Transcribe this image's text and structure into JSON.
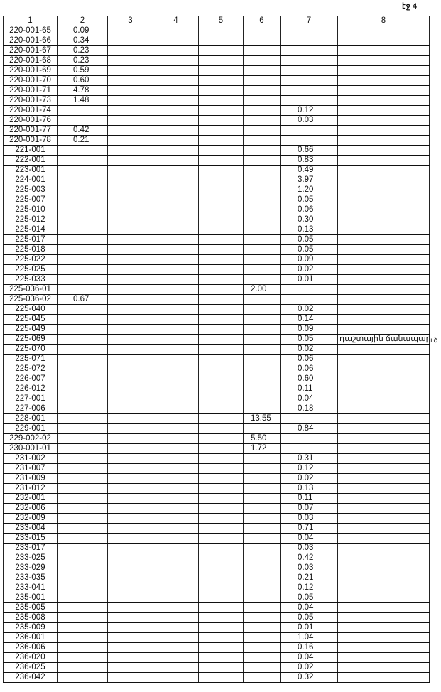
{
  "page_label": "էջ 4",
  "side_mark": "ւծ",
  "headers": [
    "1",
    "2",
    "3",
    "4",
    "5",
    "6",
    "7",
    "8"
  ],
  "rows": [
    [
      "220-001-65",
      "0.09",
      "",
      "",
      "",
      "",
      "",
      ""
    ],
    [
      "220-001-66",
      "0.34",
      "",
      "",
      "",
      "",
      "",
      ""
    ],
    [
      "220-001-67",
      "0.23",
      "",
      "",
      "",
      "",
      "",
      ""
    ],
    [
      "220-001-68",
      "0.23",
      "",
      "",
      "",
      "",
      "",
      ""
    ],
    [
      "220-001-69",
      "0.59",
      "",
      "",
      "",
      "",
      "",
      ""
    ],
    [
      "220-001-70",
      "0.60",
      "",
      "",
      "",
      "",
      "",
      ""
    ],
    [
      "220-001-71",
      "4.78",
      "",
      "",
      "",
      "",
      "",
      ""
    ],
    [
      "220-001-73",
      "1.48",
      "",
      "",
      "",
      "",
      "",
      ""
    ],
    [
      "220-001-74",
      "",
      "",
      "",
      "",
      "",
      "0.12",
      ""
    ],
    [
      "220-001-76",
      "",
      "",
      "",
      "",
      "",
      "0.03",
      ""
    ],
    [
      "220-001-77",
      "0.42",
      "",
      "",
      "",
      "",
      "",
      ""
    ],
    [
      "220-001-78",
      "0.21",
      "",
      "",
      "",
      "",
      "",
      ""
    ],
    [
      "221-001",
      "",
      "",
      "",
      "",
      "",
      "0.66",
      ""
    ],
    [
      "222-001",
      "",
      "",
      "",
      "",
      "",
      "0.83",
      ""
    ],
    [
      "223-001",
      "",
      "",
      "",
      "",
      "",
      "0.49",
      ""
    ],
    [
      "224-001",
      "",
      "",
      "",
      "",
      "",
      "3.97",
      ""
    ],
    [
      "225-003",
      "",
      "",
      "",
      "",
      "",
      "1.20",
      ""
    ],
    [
      "225-007",
      "",
      "",
      "",
      "",
      "",
      "0.05",
      ""
    ],
    [
      "225-010",
      "",
      "",
      "",
      "",
      "",
      "0.06",
      ""
    ],
    [
      "225-012",
      "",
      "",
      "",
      "",
      "",
      "0.30",
      ""
    ],
    [
      "225-014",
      "",
      "",
      "",
      "",
      "",
      "0.13",
      ""
    ],
    [
      "225-017",
      "",
      "",
      "",
      "",
      "",
      "0.05",
      ""
    ],
    [
      "225-018",
      "",
      "",
      "",
      "",
      "",
      "0.05",
      ""
    ],
    [
      "225-022",
      "",
      "",
      "",
      "",
      "",
      "0.09",
      ""
    ],
    [
      "225-025",
      "",
      "",
      "",
      "",
      "",
      "0.02",
      ""
    ],
    [
      "225-033",
      "",
      "",
      "",
      "",
      "",
      "0.01",
      ""
    ],
    [
      "225-036-01",
      "",
      "",
      "",
      "",
      "2.00",
      "",
      ""
    ],
    [
      "225-036-02",
      "0.67",
      "",
      "",
      "",
      "",
      "",
      ""
    ],
    [
      "225-040",
      "",
      "",
      "",
      "",
      "",
      "0.02",
      ""
    ],
    [
      "225-045",
      "",
      "",
      "",
      "",
      "",
      "0.14",
      ""
    ],
    [
      "225-049",
      "",
      "",
      "",
      "",
      "",
      "0.09",
      ""
    ],
    [
      "225-069",
      "",
      "",
      "",
      "",
      "",
      "0.05",
      "դաշտային ճանապարհ"
    ],
    [
      "225-070",
      "",
      "",
      "",
      "",
      "",
      "0.02",
      ""
    ],
    [
      "225-071",
      "",
      "",
      "",
      "",
      "",
      "0.06",
      ""
    ],
    [
      "225-072",
      "",
      "",
      "",
      "",
      "",
      "0.06",
      ""
    ],
    [
      "226-007",
      "",
      "",
      "",
      "",
      "",
      "0.60",
      ""
    ],
    [
      "226-012",
      "",
      "",
      "",
      "",
      "",
      "0.11",
      ""
    ],
    [
      "227-001",
      "",
      "",
      "",
      "",
      "",
      "0.04",
      ""
    ],
    [
      "227-006",
      "",
      "",
      "",
      "",
      "",
      "0.18",
      ""
    ],
    [
      "228-001",
      "",
      "",
      "",
      "",
      "13.55",
      "",
      ""
    ],
    [
      "229-001",
      "",
      "",
      "",
      "",
      "",
      "0.84",
      ""
    ],
    [
      "229-002-02",
      "",
      "",
      "",
      "",
      "5.50",
      "",
      ""
    ],
    [
      "230-001-01",
      "",
      "",
      "",
      "",
      "1.72",
      "",
      ""
    ],
    [
      "231-002",
      "",
      "",
      "",
      "",
      "",
      "0.31",
      ""
    ],
    [
      "231-007",
      "",
      "",
      "",
      "",
      "",
      "0.12",
      ""
    ],
    [
      "231-009",
      "",
      "",
      "",
      "",
      "",
      "0.02",
      ""
    ],
    [
      "231-012",
      "",
      "",
      "",
      "",
      "",
      "0.13",
      ""
    ],
    [
      "232-001",
      "",
      "",
      "",
      "",
      "",
      "0.11",
      ""
    ],
    [
      "232-006",
      "",
      "",
      "",
      "",
      "",
      "0.07",
      ""
    ],
    [
      "232-009",
      "",
      "",
      "",
      "",
      "",
      "0.03",
      ""
    ],
    [
      "233-004",
      "",
      "",
      "",
      "",
      "",
      "0.71",
      ""
    ],
    [
      "233-015",
      "",
      "",
      "",
      "",
      "",
      "0.04",
      ""
    ],
    [
      "233-017",
      "",
      "",
      "",
      "",
      "",
      "0.03",
      ""
    ],
    [
      "233-025",
      "",
      "",
      "",
      "",
      "",
      "0.42",
      ""
    ],
    [
      "233-029",
      "",
      "",
      "",
      "",
      "",
      "0.03",
      ""
    ],
    [
      "233-035",
      "",
      "",
      "",
      "",
      "",
      "0.21",
      ""
    ],
    [
      "233-041",
      "",
      "",
      "",
      "",
      "",
      "0.12",
      ""
    ],
    [
      "235-001",
      "",
      "",
      "",
      "",
      "",
      "0.05",
      ""
    ],
    [
      "235-005",
      "",
      "",
      "",
      "",
      "",
      "0.04",
      ""
    ],
    [
      "235-008",
      "",
      "",
      "",
      "",
      "",
      "0.05",
      ""
    ],
    [
      "235-009",
      "",
      "",
      "",
      "",
      "",
      "0.01",
      ""
    ],
    [
      "236-001",
      "",
      "",
      "",
      "",
      "",
      "1.04",
      ""
    ],
    [
      "236-006",
      "",
      "",
      "",
      "",
      "",
      "0.16",
      ""
    ],
    [
      "236-020",
      "",
      "",
      "",
      "",
      "",
      "0.04",
      ""
    ],
    [
      "236-025",
      "",
      "",
      "",
      "",
      "",
      "0.02",
      ""
    ],
    [
      "236-042",
      "",
      "",
      "",
      "",
      "",
      "0.32",
      ""
    ]
  ]
}
